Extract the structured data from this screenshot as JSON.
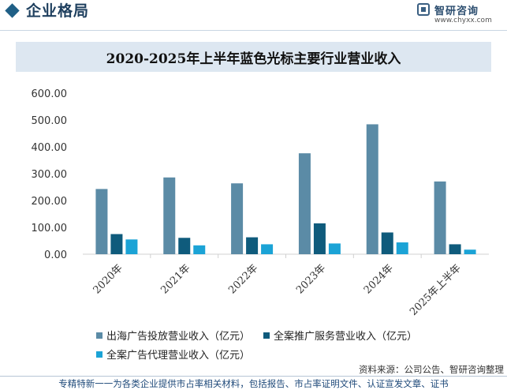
{
  "header": {
    "section_title": "企业格局",
    "brand_name": "智研咨询",
    "brand_url": "www.chyxx.com"
  },
  "chart_data": {
    "type": "bar",
    "title": "2020-2025年上半年蓝色光标主要行业营业收入",
    "categories": [
      "2020年",
      "2021年",
      "2022年",
      "2023年",
      "2024年",
      "2025年上半年"
    ],
    "ylim": [
      0,
      600
    ],
    "yticks": [
      "0.00",
      "100.00",
      "200.00",
      "300.00",
      "400.00",
      "500.00",
      "600.00"
    ],
    "grid": false,
    "legend_position": "bottom",
    "series": [
      {
        "name": "出海广告投放营业收入（亿元）",
        "color": "#5b8ba6",
        "values": [
          243,
          286,
          264,
          376,
          484,
          271
        ]
      },
      {
        "name": "全案推广服务营业收入（亿元）",
        "color": "#0f5b7c",
        "values": [
          75,
          61,
          63,
          115,
          81,
          37
        ]
      },
      {
        "name": "全案广告代理营业收入（亿元）",
        "color": "#1ba3d6",
        "values": [
          55,
          33,
          37,
          40,
          44,
          17
        ]
      }
    ]
  },
  "source": "资料来源：公司公告、智研咨询整理",
  "footer": "专精特新一一为各类企业提供市占率相关材料，包括报告、市占率证明文件、认证宣发文章、证书"
}
